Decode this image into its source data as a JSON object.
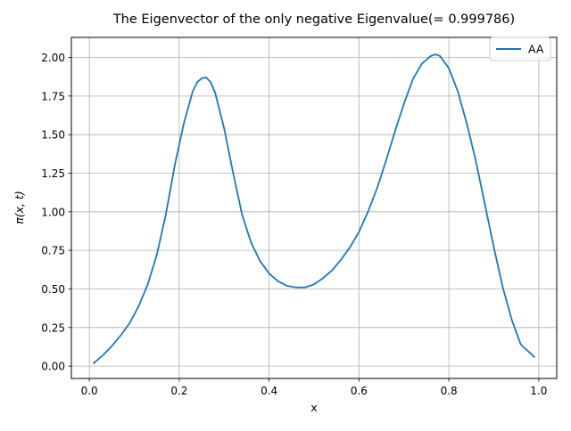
{
  "chart_data": {
    "type": "line",
    "title": "The Eigenvector of the only negative Eigenvalue(= 0.999786)",
    "xlabel": "x",
    "ylabel": "π(x, t)",
    "xlim": [
      -0.04,
      1.04
    ],
    "ylim": [
      -0.08,
      2.13
    ],
    "xticks": [
      0.0,
      0.2,
      0.4,
      0.6,
      0.8,
      1.0
    ],
    "xtick_labels": [
      "0.0",
      "0.2",
      "0.4",
      "0.6",
      "0.8",
      "1.0"
    ],
    "yticks": [
      0.0,
      0.25,
      0.5,
      0.75,
      1.0,
      1.25,
      1.5,
      1.75,
      2.0
    ],
    "ytick_labels": [
      "0.00",
      "0.25",
      "0.50",
      "0.75",
      "1.00",
      "1.25",
      "1.50",
      "1.75",
      "2.00"
    ],
    "grid": true,
    "legend": "top-right",
    "series": [
      {
        "name": "AA",
        "color": "#1f77b4",
        "x": [
          0.01,
          0.03,
          0.05,
          0.07,
          0.09,
          0.11,
          0.13,
          0.15,
          0.17,
          0.19,
          0.21,
          0.23,
          0.24,
          0.25,
          0.26,
          0.27,
          0.28,
          0.3,
          0.32,
          0.34,
          0.36,
          0.38,
          0.4,
          0.42,
          0.44,
          0.46,
          0.47,
          0.48,
          0.5,
          0.52,
          0.54,
          0.56,
          0.58,
          0.6,
          0.62,
          0.64,
          0.66,
          0.68,
          0.7,
          0.72,
          0.74,
          0.76,
          0.77,
          0.78,
          0.8,
          0.82,
          0.84,
          0.86,
          0.88,
          0.9,
          0.92,
          0.94,
          0.96,
          0.99
        ],
        "y": [
          0.02,
          0.07,
          0.13,
          0.2,
          0.28,
          0.39,
          0.53,
          0.72,
          0.98,
          1.3,
          1.57,
          1.78,
          1.84,
          1.865,
          1.87,
          1.84,
          1.77,
          1.54,
          1.25,
          0.98,
          0.8,
          0.68,
          0.6,
          0.55,
          0.52,
          0.51,
          0.51,
          0.51,
          0.53,
          0.57,
          0.62,
          0.69,
          0.77,
          0.87,
          1.0,
          1.15,
          1.33,
          1.52,
          1.7,
          1.86,
          1.96,
          2.01,
          2.02,
          2.01,
          1.93,
          1.78,
          1.57,
          1.33,
          1.05,
          0.77,
          0.51,
          0.3,
          0.14,
          0.06
        ]
      }
    ]
  }
}
